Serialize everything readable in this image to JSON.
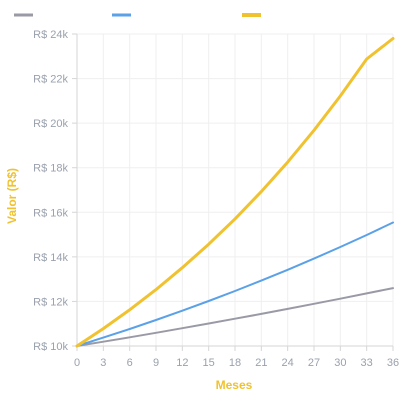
{
  "chart_data": {
    "type": "line",
    "title": "",
    "xlabel": "Meses",
    "ylabel": "Valor (R$)",
    "x_ticks": [
      "0",
      "3",
      "6",
      "9",
      "12",
      "15",
      "18",
      "21",
      "24",
      "27",
      "30",
      "33",
      "36"
    ],
    "y_ticks": [
      "R$ 10k",
      "R$ 12k",
      "R$ 14k",
      "R$ 16k",
      "R$ 18k",
      "R$ 20k",
      "R$ 22k",
      "R$ 24k"
    ],
    "xlim": [
      0,
      36
    ],
    "ylim": [
      10000,
      24000
    ],
    "grid": true,
    "legend": "top-left",
    "x": [
      0,
      3,
      6,
      9,
      12,
      15,
      18,
      21,
      24,
      27,
      30,
      33,
      36
    ],
    "series": [
      {
        "values": [
          10000,
          10194,
          10392,
          10594,
          10800,
          11010,
          11224,
          11442,
          11665,
          11892,
          12123,
          12359,
          12600
        ],
        "color": "#9a9aa6"
      },
      {
        "values": [
          10000,
          10375,
          10764,
          11167,
          11585,
          12019,
          12469,
          12935,
          13419,
          13921,
          14442,
          14982,
          15540
        ],
        "color": "#5aa1e8"
      },
      {
        "values": [
          10000,
          10782,
          11625,
          12533,
          13512,
          14567,
          15704,
          16930,
          18253,
          19679,
          21218,
          22879,
          23800
        ],
        "color": "#f0c230"
      }
    ],
    "axis_title_color": "#f0c230"
  }
}
